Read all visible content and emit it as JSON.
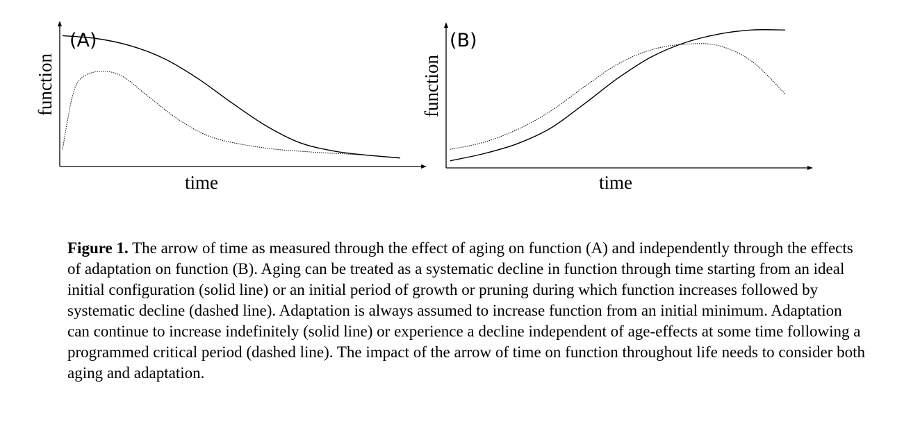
{
  "chart_data": [
    {
      "type": "line",
      "panel_label": "(A)",
      "xlabel": "time",
      "ylabel": "function",
      "series": [
        {
          "style": "solid",
          "x": [
            0,
            0.1,
            0.2,
            0.3,
            0.4,
            0.5,
            0.6,
            0.7,
            0.8,
            0.9,
            1.0
          ],
          "y": [
            0.92,
            0.9,
            0.85,
            0.76,
            0.62,
            0.45,
            0.29,
            0.17,
            0.11,
            0.08,
            0.06
          ]
        },
        {
          "style": "dotted",
          "x": [
            0,
            0.03,
            0.06,
            0.12,
            0.18,
            0.25,
            0.35,
            0.45,
            0.6,
            0.75,
            0.9,
            1.0
          ],
          "y": [
            0.12,
            0.5,
            0.63,
            0.67,
            0.63,
            0.5,
            0.32,
            0.2,
            0.13,
            0.1,
            0.08,
            0.06
          ]
        }
      ]
    },
    {
      "type": "line",
      "panel_label": "(B)",
      "xlabel": "time",
      "ylabel": "function",
      "series": [
        {
          "style": "solid",
          "x": [
            0,
            0.1,
            0.2,
            0.3,
            0.4,
            0.5,
            0.6,
            0.7,
            0.8,
            0.9,
            1.0
          ],
          "y": [
            0.05,
            0.1,
            0.17,
            0.28,
            0.45,
            0.63,
            0.78,
            0.88,
            0.94,
            0.97,
            0.97
          ]
        },
        {
          "style": "dotted",
          "x": [
            0,
            0.1,
            0.2,
            0.3,
            0.4,
            0.5,
            0.6,
            0.7,
            0.8,
            0.9,
            1.0
          ],
          "y": [
            0.13,
            0.18,
            0.27,
            0.4,
            0.57,
            0.73,
            0.83,
            0.87,
            0.86,
            0.75,
            0.52
          ]
        }
      ]
    }
  ],
  "caption": {
    "label": "Figure 1.",
    "text": " The arrow of time as measured through the effect of aging on function (A) and independently through the effects of adaptation on function (B). Aging can be treated as a systematic decline in function through time starting from an ideal initial configuration (solid line) or an initial period of growth or pruning during which function increases followed by systematic decline (dashed line). Adaptation is always assumed to increase function from an initial minimum. Adaptation can continue to increase indefinitely (solid line) or experience a decline independent of age-effects at some time following a programmed critical period (dashed line). The impact of the arrow of time on function throughout life needs to consider both aging and adaptation."
  }
}
